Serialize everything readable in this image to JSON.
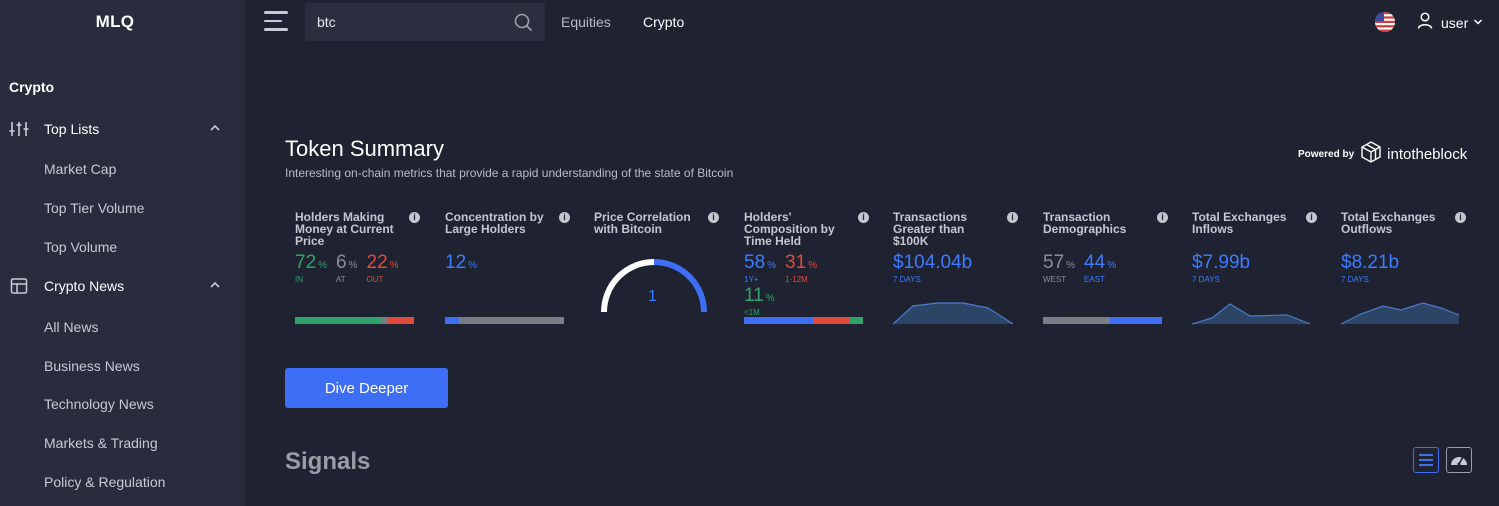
{
  "sidebar": {
    "logo": "MLQ",
    "section": "Crypto",
    "groups": [
      {
        "label": "Top Lists",
        "icon": "sliders-icon",
        "items": [
          "Market Cap",
          "Top Tier Volume",
          "Top Volume"
        ]
      },
      {
        "label": "Crypto News",
        "icon": "newspaper-icon",
        "items": [
          "All News",
          "Business News",
          "Technology News",
          "Markets & Trading",
          "Policy & Regulation"
        ]
      }
    ]
  },
  "topbar": {
    "search": {
      "value": "btc"
    },
    "nav": [
      "Equities",
      "Crypto"
    ],
    "active_nav": "Crypto",
    "user": "user"
  },
  "token_summary": {
    "title": "Token Summary",
    "subtitle": "Interesting on-chain metrics that provide a rapid understanding of the state of Bitcoin",
    "powered_by": "Powered by",
    "brand": "intotheblock",
    "info_glyph": "i",
    "cards": {
      "holders_money": {
        "title": "Holders Making Money at Current Price",
        "in": {
          "value": "72",
          "pct": "%",
          "label": "IN"
        },
        "at": {
          "value": "6",
          "pct": "%",
          "label": "AT"
        },
        "out": {
          "value": "22",
          "pct": "%",
          "label": "OUT"
        }
      },
      "concentration": {
        "title": "Concentration by Large Holders",
        "value": "12",
        "pct": "%"
      },
      "correlation": {
        "title": "Price Correlation with Bitcoin",
        "value": "1"
      },
      "composition": {
        "title": "Holders' Composition by Time Held",
        "long": {
          "value": "58",
          "pct": "%",
          "label": "1Y+"
        },
        "mid": {
          "value": "31",
          "pct": "%",
          "label": "1-12M"
        },
        "short": {
          "value": "11",
          "pct": "%",
          "label": "<1M"
        }
      },
      "large_tx": {
        "title": "Transactions Greater than $100K",
        "value": "$104.04b",
        "period": "7 DAYS"
      },
      "demographics": {
        "title": "Transaction Demographics",
        "west": {
          "value": "57",
          "pct": "%",
          "label": "WEST"
        },
        "east": {
          "value": "44",
          "pct": "%",
          "label": "EAST"
        }
      },
      "inflows": {
        "title": "Total Exchanges Inflows",
        "value": "$7.99b",
        "period": "7 DAYS"
      },
      "outflows": {
        "title": "Total Exchanges Outflows",
        "value": "$8.21b",
        "period": "7 DAYS"
      }
    },
    "dive_button": "Dive Deeper"
  },
  "signals": {
    "title": "Signals",
    "views": [
      "list-view-icon",
      "gauge-view-icon"
    ]
  },
  "colors": {
    "accent": "#3d6ef5",
    "green": "#2fa36a",
    "red": "#e04a3c",
    "gray": "#7a7d86",
    "sidebar_bg": "#282c3d",
    "page_bg": "#1f2331"
  }
}
